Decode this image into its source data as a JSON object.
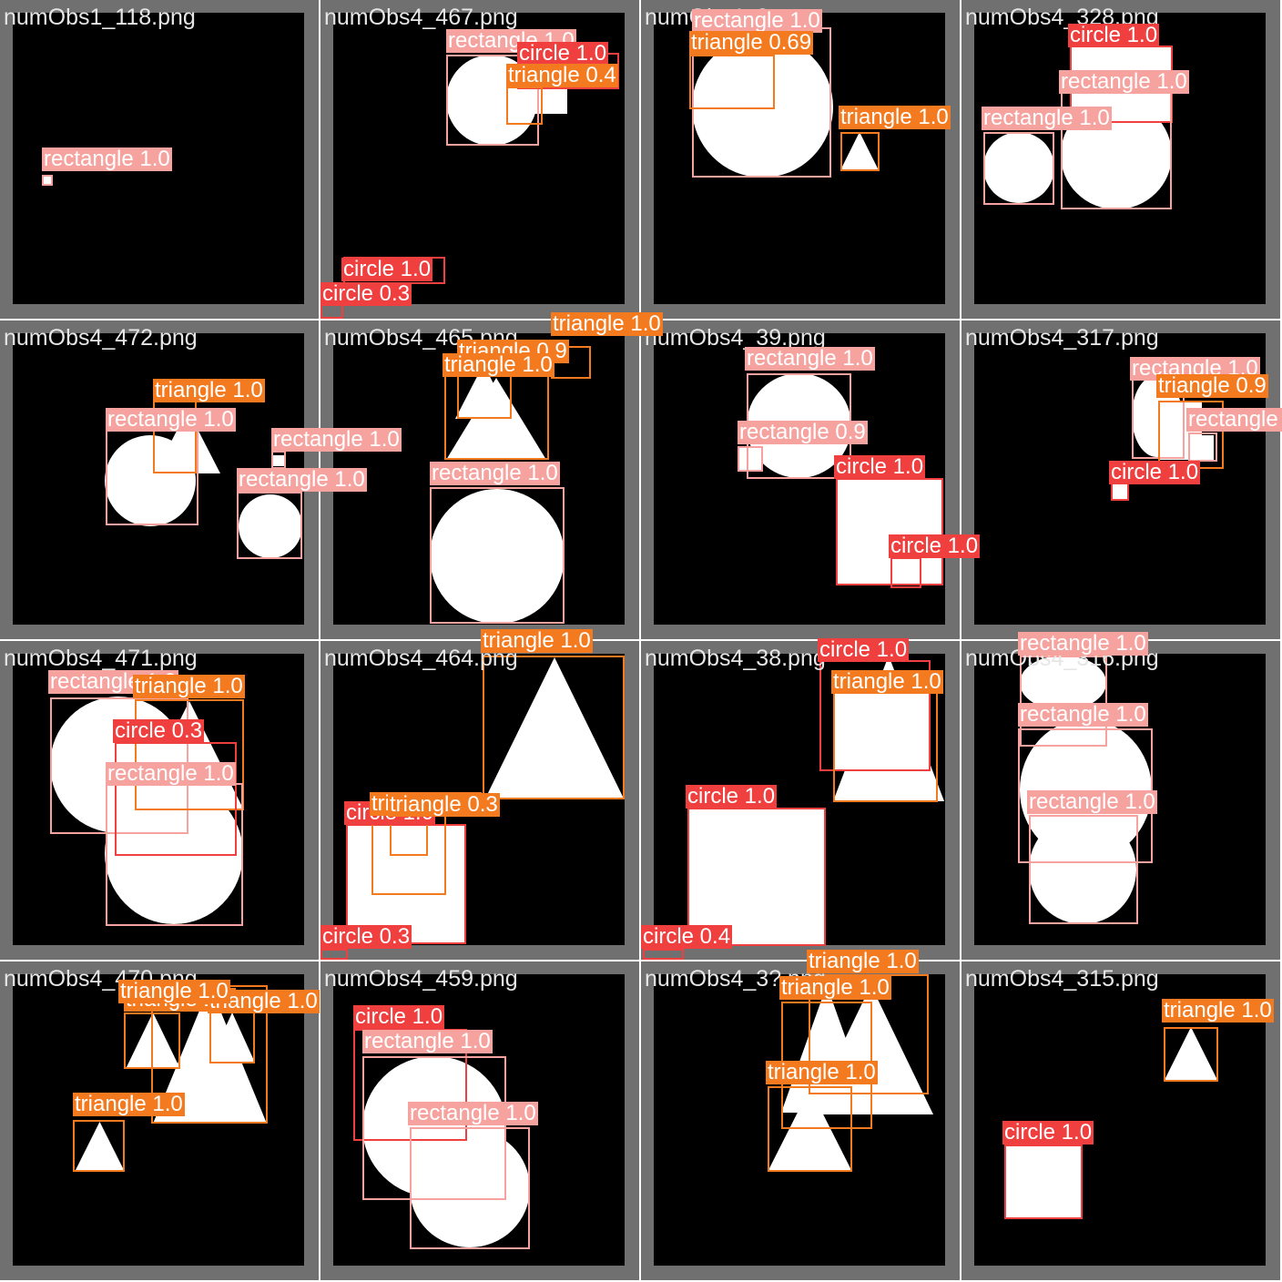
{
  "colors": {
    "rectangle": "#f6a3a0",
    "circle": "#ef3f3f",
    "triangle": "#f47a1f",
    "frame": "#707070",
    "canvas": "#000000"
  },
  "tiles": [
    {
      "file": "numObs1_118.png",
      "shapes": [
        {
          "t": "rectangle"
        }
      ],
      "dets": [
        {
          "cls": "rectangle",
          "conf": "1.0"
        }
      ]
    },
    {
      "file": "numObs4_467.png",
      "shapes": [
        {
          "t": "circle"
        },
        {
          "t": "rectangle"
        }
      ],
      "dets": [
        {
          "cls": "rectangle",
          "conf": "1.0"
        },
        {
          "cls": "circle",
          "conf": "1.0"
        },
        {
          "cls": "triangle",
          "conf": "0.4"
        },
        {
          "cls": "circle",
          "conf": "1.0"
        },
        {
          "cls": "circle",
          "conf": "0.3"
        }
      ]
    },
    {
      "file": "numObs4_?.png",
      "shapes": [
        {
          "t": "circle"
        },
        {
          "t": "triangle"
        }
      ],
      "dets": [
        {
          "cls": "rectangle",
          "conf": "1.0"
        },
        {
          "cls": "triangle",
          "conf": "0.69"
        },
        {
          "cls": "triangle",
          "conf": "1.0"
        }
      ]
    },
    {
      "file": "numObs4_328.png",
      "shapes": [
        {
          "t": "rectangle"
        },
        {
          "t": "circle"
        },
        {
          "t": "circle"
        }
      ],
      "dets": [
        {
          "cls": "circle",
          "conf": "1.0"
        },
        {
          "cls": "rectangle",
          "conf": "1.0"
        },
        {
          "cls": "rectangle",
          "conf": "1.0"
        }
      ]
    },
    {
      "file": "numObs4_472.png",
      "shapes": [
        {
          "t": "circle"
        },
        {
          "t": "triangle"
        },
        {
          "t": "circle"
        },
        {
          "t": "rectangle"
        }
      ],
      "dets": [
        {
          "cls": "triangle",
          "conf": "1.0"
        },
        {
          "cls": "rectangle",
          "conf": "1.0"
        },
        {
          "cls": "rectangle",
          "conf": "1.0"
        },
        {
          "cls": "rectangle",
          "conf": "1.0"
        }
      ]
    },
    {
      "file": "numObs4_465.png",
      "shapes": [
        {
          "t": "triangle"
        },
        {
          "t": "triangle"
        },
        {
          "t": "circle"
        }
      ],
      "dets": [
        {
          "cls": "triangle",
          "conf": "1.0"
        },
        {
          "cls": "triangle",
          "conf": "0.9"
        },
        {
          "cls": "triangle",
          "conf": "1.0"
        },
        {
          "cls": "rectangle",
          "conf": "1.0"
        }
      ]
    },
    {
      "file": "numObs4_39.png",
      "shapes": [
        {
          "t": "circle"
        },
        {
          "t": "rectangle"
        },
        {
          "t": "rectangle"
        }
      ],
      "dets": [
        {
          "cls": "rectangle",
          "conf": "1.0"
        },
        {
          "cls": "rectangle",
          "conf": "0.9"
        },
        {
          "cls": "circle",
          "conf": "1.0"
        },
        {
          "cls": "circle",
          "conf": "1.0"
        }
      ]
    },
    {
      "file": "numObs4_317.png",
      "shapes": [
        {
          "t": "circle"
        },
        {
          "t": "rectangle"
        },
        {
          "t": "rectangle"
        },
        {
          "t": "rectangle"
        }
      ],
      "dets": [
        {
          "cls": "rectangle",
          "conf": "1.0"
        },
        {
          "cls": "triangle",
          "conf": "0.9"
        },
        {
          "cls": "rectangle",
          "conf": "1.0"
        },
        {
          "cls": "circle",
          "conf": "1.0"
        }
      ]
    },
    {
      "file": "numObs4_471.png",
      "shapes": [
        {
          "t": "circle"
        },
        {
          "t": "triangle"
        },
        {
          "t": "circle"
        }
      ],
      "dets": [
        {
          "cls": "rectangle",
          "conf": "1.0"
        },
        {
          "cls": "triangle",
          "conf": "1.0"
        },
        {
          "cls": "circle",
          "conf": "0.3"
        },
        {
          "cls": "rectangle",
          "conf": "1.0"
        }
      ]
    },
    {
      "file": "numObs4_464.png",
      "shapes": [
        {
          "t": "triangle"
        },
        {
          "t": "rectangle"
        }
      ],
      "dets": [
        {
          "cls": "triangle",
          "conf": "1.0"
        },
        {
          "cls": "circle",
          "conf": "1.0"
        },
        {
          "cls": "triangle",
          "conf": "1.0"
        },
        {
          "cls": "triangle",
          "conf": "0.3"
        },
        {
          "cls": "circle",
          "conf": "0.3"
        }
      ]
    },
    {
      "file": "numObs4_38.png",
      "shapes": [
        {
          "t": "triangle"
        },
        {
          "t": "rectangle"
        },
        {
          "t": "rectangle"
        }
      ],
      "dets": [
        {
          "cls": "circle",
          "conf": "1.0"
        },
        {
          "cls": "triangle",
          "conf": "1.0"
        },
        {
          "cls": "circle",
          "conf": "1.0"
        },
        {
          "cls": "circle",
          "conf": "0.4"
        }
      ]
    },
    {
      "file": "numObs4_316.png",
      "shapes": [
        {
          "t": "circle"
        },
        {
          "t": "circle"
        },
        {
          "t": "circle"
        }
      ],
      "dets": [
        {
          "cls": "rectangle",
          "conf": "1.0"
        },
        {
          "cls": "rectangle",
          "conf": "1.0"
        },
        {
          "cls": "rectangle",
          "conf": "1.0"
        }
      ]
    },
    {
      "file": "numObs4_470.png",
      "shapes": [
        {
          "t": "triangle"
        },
        {
          "t": "triangle"
        },
        {
          "t": "triangle"
        },
        {
          "t": "triangle"
        }
      ],
      "dets": [
        {
          "cls": "triangle",
          "conf": "1.0"
        },
        {
          "cls": "triangle",
          "conf": "1.0"
        },
        {
          "cls": "triangle",
          "conf": "1.0"
        },
        {
          "cls": "triangle",
          "conf": "1.0"
        }
      ]
    },
    {
      "file": "numObs4_459.png",
      "shapes": [
        {
          "t": "circle"
        },
        {
          "t": "circle"
        }
      ],
      "dets": [
        {
          "cls": "circle",
          "conf": "1.0"
        },
        {
          "cls": "rectangle",
          "conf": "1.0"
        },
        {
          "cls": "rectangle",
          "conf": "1.0"
        }
      ]
    },
    {
      "file": "numObs4_3?.png",
      "shapes": [
        {
          "t": "triangle"
        },
        {
          "t": "triangle"
        },
        {
          "t": "triangle"
        }
      ],
      "dets": [
        {
          "cls": "triangle",
          "conf": "1.0"
        },
        {
          "cls": "triangle",
          "conf": "1.0"
        },
        {
          "cls": "triangle",
          "conf": "1.0"
        }
      ]
    },
    {
      "file": "numObs4_315.png",
      "shapes": [
        {
          "t": "triangle"
        },
        {
          "t": "rectangle"
        }
      ],
      "dets": [
        {
          "cls": "triangle",
          "conf": "1.0"
        },
        {
          "cls": "circle",
          "conf": "1.0"
        }
      ]
    }
  ]
}
